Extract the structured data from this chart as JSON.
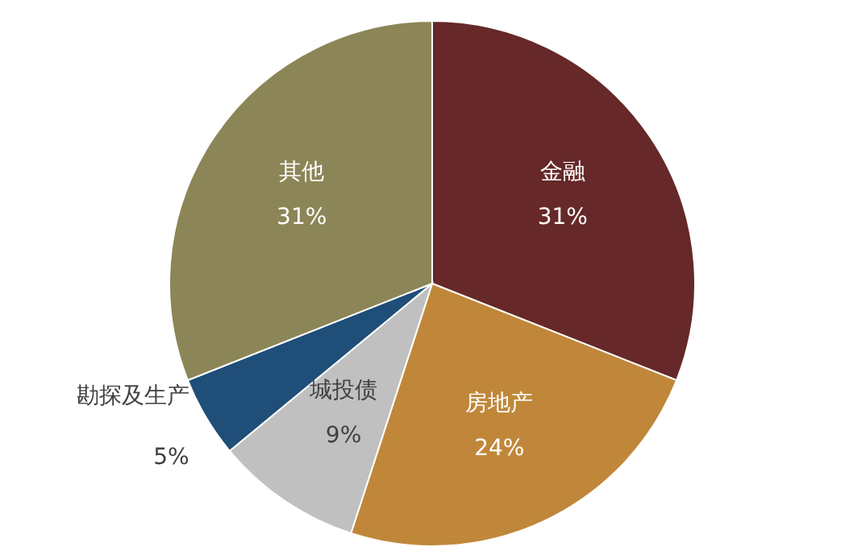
{
  "chart_data": {
    "type": "pie",
    "categories": [
      "金融",
      "房地产",
      "城投债",
      "勘探及生产",
      "其他"
    ],
    "values": [
      31,
      24,
      9,
      5,
      31
    ],
    "value_labels": [
      "31%",
      "24%",
      "9%",
      "5%",
      "31%"
    ],
    "colors": [
      "#662828",
      "#c0873a",
      "#c0c0c0",
      "#1f4e79",
      "#8c8557"
    ]
  }
}
